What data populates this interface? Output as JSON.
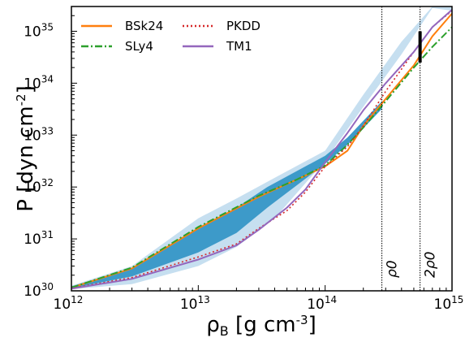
{
  "chart_data": {
    "type": "line",
    "xlabel": "ρB [g cm-3]",
    "ylabel": "P [dyn cm-2]",
    "x_scale": "log",
    "y_scale": "log",
    "xlim": [
      1000000000000.0,
      1000000000000000.0
    ],
    "ylim": [
      1e+30,
      3e+35
    ],
    "grid": false,
    "legend_position": "top-left",
    "x_ticks": [
      {
        "value": 1000000000000.0,
        "base": "10",
        "exp": "12"
      },
      {
        "value": 10000000000000.0,
        "base": "10",
        "exp": "13"
      },
      {
        "value": 100000000000000.0,
        "base": "10",
        "exp": "14"
      },
      {
        "value": 1000000000000000.0,
        "base": "10",
        "exp": "15"
      }
    ],
    "y_ticks": [
      {
        "value": 1e+30,
        "base": "10",
        "exp": "30"
      },
      {
        "value": 1e+31,
        "base": "10",
        "exp": "31"
      },
      {
        "value": 1e+32,
        "base": "10",
        "exp": "32"
      },
      {
        "value": 1e+33,
        "base": "10",
        "exp": "33"
      },
      {
        "value": 1e+34,
        "base": "10",
        "exp": "34"
      },
      {
        "value": 1e+35,
        "base": "10",
        "exp": "35"
      }
    ],
    "bands": [
      {
        "color": "#c6dff0",
        "x": [
          1000000000000.0,
          3000000000000.0,
          10000000000000.0,
          20000000000000.0,
          40000000000000.0,
          100000000000000.0,
          200000000000000.0,
          400000000000000.0,
          700000000000000.0,
          1000000000000000.0
        ],
        "lower": [
          1.08e+30,
          1.35e+30,
          3e+30,
          7e+30,
          2.5e+31,
          3.2e+32,
          3.5e+33,
          3.6e+34,
          2.8e+35,
          2.5e+35
        ],
        "upper": [
          1.25e+30,
          3e+30,
          2.5e+31,
          6e+31,
          1.5e+32,
          5e+32,
          6e+33,
          6.3e+34,
          3e+35,
          3e+35
        ]
      },
      {
        "color": "#3d9ac9",
        "x": [
          1000000000000.0,
          3000000000000.0,
          10000000000000.0,
          20000000000000.0,
          35000000000000.0,
          100000000000000.0,
          150000000000000.0,
          280000000000000.0
        ],
        "lower": [
          1.12e+30,
          1.9e+30,
          5.5e+30,
          1.3e+31,
          4e+31,
          2.8e+32,
          6.5e+32,
          3.2e+33
        ],
        "upper": [
          1.22e+30,
          2.7e+30,
          1.6e+31,
          4e+31,
          1e+32,
          4e+32,
          9e+32,
          4.5e+33
        ]
      }
    ],
    "series": [
      {
        "name": "BSk24",
        "color": "#ff7f0e",
        "style": "solid",
        "x": [
          1000000000000.0,
          3000000000000.0,
          10000000000000.0,
          30000000000000.0,
          60000000000000.0,
          100000000000000.0,
          150000000000000.0,
          200000000000000.0,
          300000000000000.0,
          500000000000000.0,
          700000000000000.0,
          1000000000000000.0
        ],
        "y": [
          1.15e+30,
          2.7e+30,
          1.6e+31,
          6.5e+31,
          1.4e+32,
          2.5e+32,
          5e+32,
          1.5e+33,
          5e+33,
          2.2e+34,
          8e+34,
          2.2e+35
        ]
      },
      {
        "name": "SLy4",
        "color": "#2ca02c",
        "style": "dashdot",
        "x": [
          1000000000000.0,
          3000000000000.0,
          10000000000000.0,
          30000000000000.0,
          60000000000000.0,
          100000000000000.0,
          150000000000000.0,
          200000000000000.0,
          300000000000000.0,
          500000000000000.0,
          700000000000000.0,
          1000000000000000.0
        ],
        "y": [
          1.15e+30,
          2.8e+30,
          1.7e+31,
          6.8e+31,
          1.4e+32,
          2.6e+32,
          6.5e+32,
          1.4e+33,
          4.5e+33,
          2e+34,
          5e+34,
          1.2e+35
        ]
      },
      {
        "name": "PKDD",
        "color": "#d62728",
        "style": "dotted",
        "x": [
          1000000000000.0,
          3000000000000.0,
          10000000000000.0,
          20000000000000.0,
          30000000000000.0,
          50000000000000.0,
          70000000000000.0,
          100000000000000.0,
          150000000000000.0,
          200000000000000.0,
          300000000000000.0,
          500000000000000.0,
          700000000000000.0,
          1000000000000000.0
        ],
        "y": [
          1.12e+30,
          1.8e+30,
          4.5e+30,
          8e+30,
          1.6e+31,
          3.5e+31,
          8e+31,
          2.5e+32,
          6e+32,
          1.5e+33,
          7e+33,
          4e+34,
          1.2e+35,
          2.5e+35
        ]
      },
      {
        "name": "TM1",
        "color": "#9467bd",
        "style": "solid",
        "x": [
          1000000000000.0,
          3000000000000.0,
          10000000000000.0,
          20000000000000.0,
          30000000000000.0,
          50000000000000.0,
          70000000000000.0,
          100000000000000.0,
          150000000000000.0,
          200000000000000.0,
          300000000000000.0,
          500000000000000.0,
          700000000000000.0,
          1000000000000000.0
        ],
        "y": [
          1.1e+30,
          1.7e+30,
          4e+30,
          7.5e+30,
          1.5e+31,
          4e+31,
          9e+31,
          3e+32,
          1.1e+33,
          3e+33,
          1e+34,
          4e+34,
          1.2e+35,
          2.6e+35
        ]
      }
    ],
    "vertical_lines": [
      {
        "x": 280000000000000.0,
        "label": "ρ0"
      },
      {
        "x": 560000000000000.0,
        "label": "2ρ0"
      }
    ],
    "constraint_bar": {
      "x": 560000000000000.0,
      "y_low": 2.5e+34,
      "y_high": 1e+35
    }
  }
}
